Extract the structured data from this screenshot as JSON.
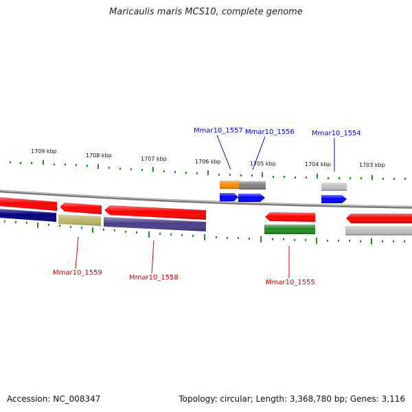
{
  "title": "Maricaulis maris MCS10, complete genome",
  "footer": {
    "accession": "Accession: NC_008347",
    "summary": "Topology: circular; Length: 3,368,780 bp; Genes: 3,116"
  },
  "scale_labels": [
    "1709 kbp",
    "1708 kbp",
    "1707 kbp",
    "1706 kbp",
    "1705 kbp",
    "1704 kbp",
    "1703 kbp"
  ],
  "gene_labels": {
    "mmar10_1557": "Mmar10_1557",
    "mmar10_1556": "Mmar10_1556",
    "mmar10_1554": "Mmar10_1554",
    "mmar10_1559": "Mmar10_1559",
    "mmar10_1558": "Mmar10_1558",
    "mmar10_1555": "Mmar10_1555"
  },
  "colors": {
    "forward_label": "#0000cc",
    "reverse_label": "#cc0000",
    "tick": "#228b22",
    "backbone": "#808080",
    "cds_red": "#ff0000",
    "cds_blue": "#0000ff",
    "cds_navy": "#000080",
    "cds_khaki": "#bdb76b",
    "cds_slate": "#483d8b",
    "cds_green": "#228b22",
    "cds_orange": "#ff8c00",
    "cds_gray": "#808080",
    "cds_lightgray": "#c0c0c0"
  }
}
